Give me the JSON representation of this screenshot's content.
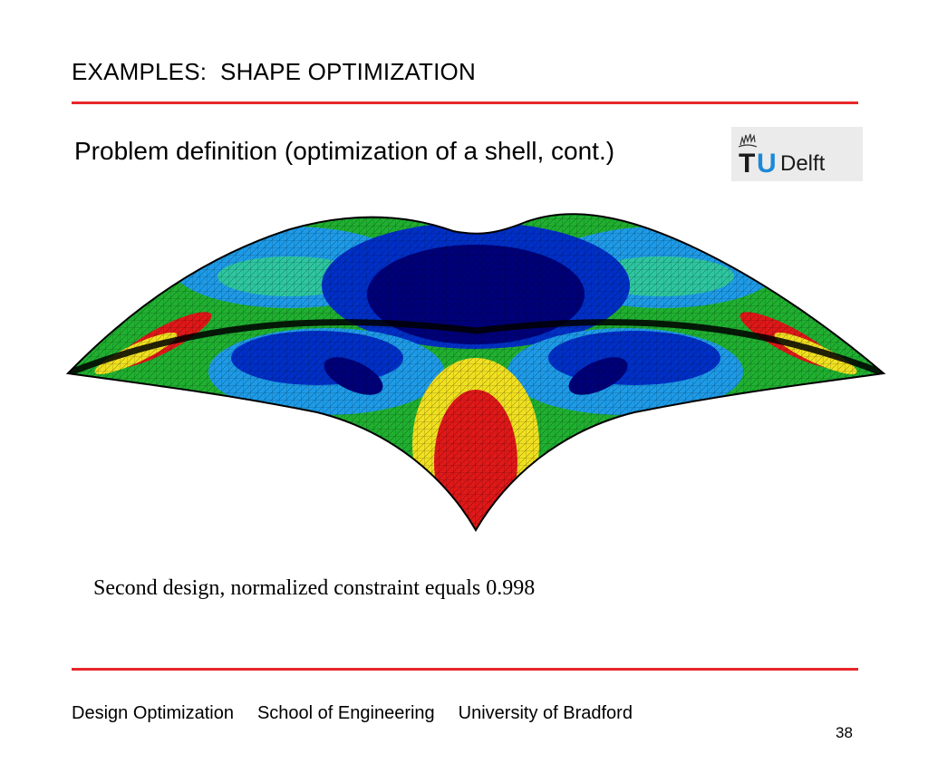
{
  "slide": {
    "title": "EXAMPLES:  SHAPE OPTIMIZATION",
    "subtitle": "Problem definition (optimization of a shell, cont.)",
    "caption": "Second design, normalized constraint equals 0.998",
    "page_number": "38"
  },
  "logo": {
    "text_tu": "TU",
    "text_delft": "Delft",
    "colors": {
      "t": "#1a1a1a",
      "u": "#1e88d8",
      "delft": "#1a1a1a"
    }
  },
  "footer": {
    "items": [
      "Design Optimization",
      "School of Engineering",
      "University of Bradford"
    ]
  },
  "colors": {
    "rule": "#e8262a",
    "contour": [
      "#00007a",
      "#0030c8",
      "#1e9be8",
      "#2ec6a0",
      "#20b030",
      "#f0e020",
      "#e01818"
    ]
  }
}
